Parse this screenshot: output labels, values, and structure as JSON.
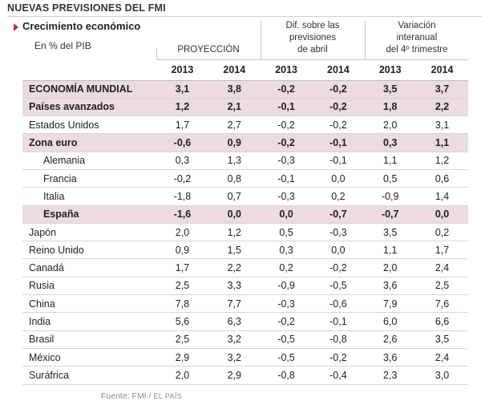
{
  "header": {
    "title": "NUEVAS PREVISIONES DEL FMI",
    "subtitle": "Crecimiento económico",
    "unit": "En % del PIB"
  },
  "column_groups": {
    "proyeccion": "PROYECCIÓN",
    "dif": [
      "Dif. sobre las",
      "previsiones",
      "de abril"
    ],
    "variacion": [
      "Variación",
      "interanual",
      "del 4º trimestre"
    ]
  },
  "years": [
    "2013",
    "2014",
    "2013",
    "2014",
    "2013",
    "2014"
  ],
  "rows": [
    {
      "name": "ECONOMÍA MUNDIAL",
      "values": [
        "3,1",
        "3,8",
        "-0,2",
        "-0,2",
        "3,5",
        "3,7"
      ],
      "highlight": true,
      "indent": false
    },
    {
      "name": "Países avanzados",
      "values": [
        "1,2",
        "2,1",
        "-0,1",
        "-0,2",
        "1,8",
        "2,2"
      ],
      "highlight": true,
      "indent": false
    },
    {
      "name": "Estados Unidos",
      "values": [
        "1,7",
        "2,7",
        "-0,2",
        "-0,2",
        "2,0",
        "3,1"
      ],
      "highlight": false,
      "indent": false
    },
    {
      "name": "Zona euro",
      "values": [
        "-0,6",
        "0,9",
        "-0,2",
        "-0,1",
        "0,3",
        "1,1"
      ],
      "highlight": true,
      "indent": false
    },
    {
      "name": "Alemania",
      "values": [
        "0,3",
        "1,3",
        "-0,3",
        "-0,1",
        "1,1",
        "1,2"
      ],
      "highlight": false,
      "indent": true
    },
    {
      "name": "Francia",
      "values": [
        "-0,2",
        "0,8",
        "-0,1",
        "0,0",
        "0,5",
        "0,6"
      ],
      "highlight": false,
      "indent": true
    },
    {
      "name": "Italia",
      "values": [
        "-1,8",
        "0,7",
        "-0,3",
        "0,2",
        "-0,9",
        "1,4"
      ],
      "highlight": false,
      "indent": true
    },
    {
      "name": "España",
      "values": [
        "-1,6",
        "0,0",
        "0,0",
        "-0,7",
        "-0,7",
        "0,0"
      ],
      "highlight": true,
      "indent": true
    },
    {
      "name": "Japón",
      "values": [
        "2,0",
        "1,2",
        "0,5",
        "-0,3",
        "3,5",
        "0,2"
      ],
      "highlight": false,
      "indent": false
    },
    {
      "name": "Reino Unido",
      "values": [
        "0,9",
        "1,5",
        "0,3",
        "0,0",
        "1,1",
        "1,7"
      ],
      "highlight": false,
      "indent": false
    },
    {
      "name": "Canadá",
      "values": [
        "1,7",
        "2,2",
        "0,2",
        "-0,2",
        "2,0",
        "2,4"
      ],
      "highlight": false,
      "indent": false
    },
    {
      "name": "Rusia",
      "values": [
        "2,5",
        "3,3",
        "-0,9",
        "-0,5",
        "3,6",
        "2,5"
      ],
      "highlight": false,
      "indent": false
    },
    {
      "name": "China",
      "values": [
        "7,8",
        "7,7",
        "-0,3",
        "-0,6",
        "7,9",
        "7,6"
      ],
      "highlight": false,
      "indent": false
    },
    {
      "name": "India",
      "values": [
        "5,6",
        "6,3",
        "-0,2",
        "-0,1",
        "6,0",
        "6,6"
      ],
      "highlight": false,
      "indent": false
    },
    {
      "name": "Brasil",
      "values": [
        "2,5",
        "3,2",
        "-0,5",
        "-0,8",
        "2,6",
        "3,5"
      ],
      "highlight": false,
      "indent": false
    },
    {
      "name": "México",
      "values": [
        "2,9",
        "3,2",
        "-0,5",
        "-0,2",
        "3,6",
        "2,4"
      ],
      "highlight": false,
      "indent": false
    },
    {
      "name": "Suráfrica",
      "values": [
        "2,0",
        "2,9",
        "-0,8",
        "-0,4",
        "2,3",
        "3,0"
      ],
      "highlight": false,
      "indent": false
    }
  ],
  "source": {
    "label": "Fuente: FMI / ",
    "publisher": "EL PAÍS"
  },
  "colors": {
    "highlight": "#ecdbe3",
    "bullet": "#b3315b"
  }
}
